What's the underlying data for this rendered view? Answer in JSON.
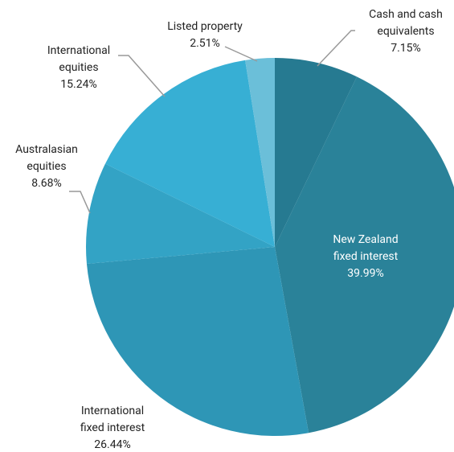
{
  "chart_data": {
    "type": "pie",
    "categories": [
      "Cash and cash\nequivalents",
      "New Zealand\nfixed interest",
      "International\nfixed interest",
      "Australasian\nequities",
      "International\nequities",
      "Listed property"
    ],
    "values": [
      7.15,
      39.99,
      26.44,
      8.68,
      15.24,
      2.51
    ],
    "value_labels": [
      "7.15%",
      "39.99%",
      "26.44%",
      "8.68%",
      "15.24%",
      "2.51%"
    ],
    "colors": [
      "#267a91",
      "#2a8299",
      "#2e96b6",
      "#33a3c5",
      "#37afd4",
      "#6bbfd9"
    ]
  }
}
